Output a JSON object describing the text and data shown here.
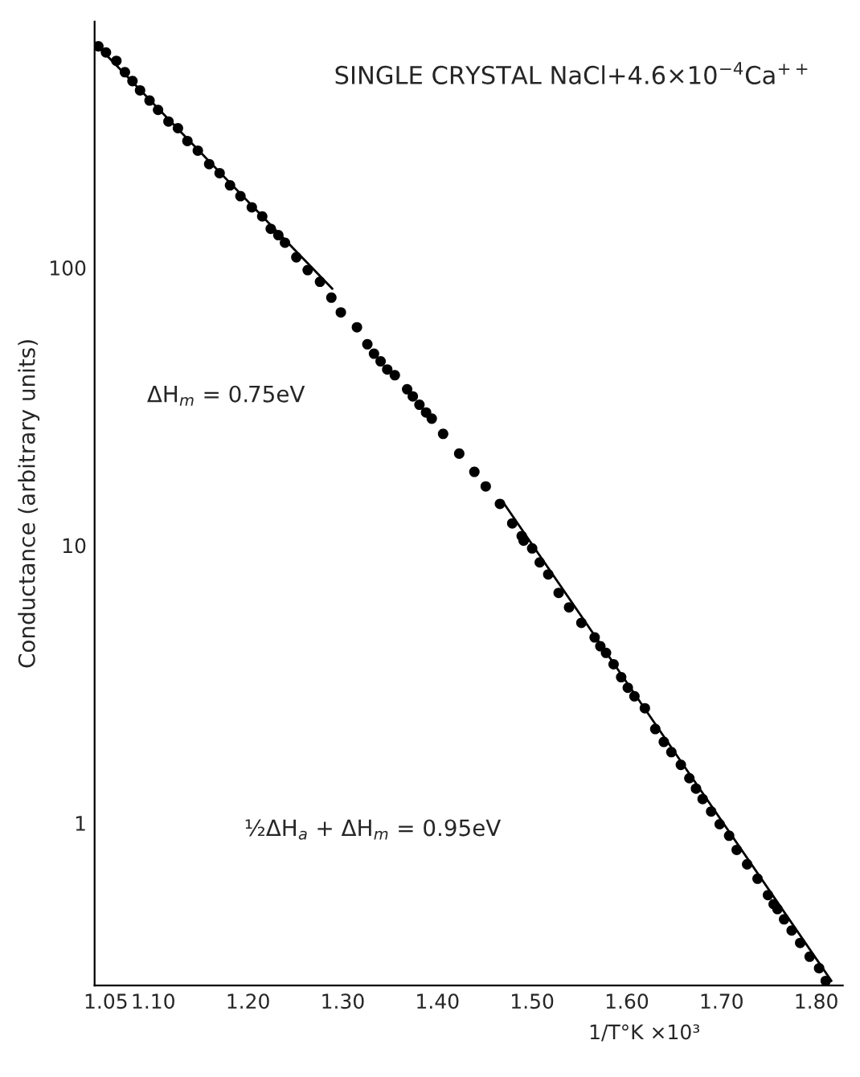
{
  "chart_data": {
    "type": "scatter",
    "title": "SINGLE CRYSTAL NaCl+4.6×10$^{−4}$Ca$^{++}$",
    "xlabel": "1/T°K ×10³",
    "ylabel": "Conductance (arbitrary units)",
    "annotations": [
      "ΔH$_{m}$ = 0.75eV",
      "½ΔH$_{a}$ + ΔH$_{m}$ = 0.95eV"
    ],
    "log": "y",
    "xlim": [
      1.038,
      1.828
    ],
    "ylim": [
      0.26,
      770
    ],
    "xticks": [
      {
        "value": 1.05,
        "label": "1.05"
      },
      {
        "value": 1.1,
        "label": "1.10"
      },
      {
        "value": 1.2,
        "label": "1.20"
      },
      {
        "value": 1.3,
        "label": "1.30"
      },
      {
        "value": 1.4,
        "label": "1.40"
      },
      {
        "value": 1.5,
        "label": "1.50"
      },
      {
        "value": 1.6,
        "label": "1.60"
      },
      {
        "value": 1.7,
        "label": "1.70"
      },
      {
        "value": 1.8,
        "label": "1.80"
      }
    ],
    "yticks": [
      1,
      10,
      100
    ],
    "grid": false,
    "legend": false,
    "series": [
      {
        "color": "#000000",
        "marker": "circle",
        "x": [
          1.042,
          1.05,
          1.061,
          1.07,
          1.078,
          1.086,
          1.096,
          1.105,
          1.116,
          1.126,
          1.136,
          1.147,
          1.159,
          1.17,
          1.181,
          1.192,
          1.204,
          1.215,
          1.224,
          1.232,
          1.239,
          1.251,
          1.263,
          1.276,
          1.288,
          1.298,
          1.315,
          1.326,
          1.333,
          1.34,
          1.347,
          1.355,
          1.368,
          1.374,
          1.381,
          1.388,
          1.394,
          1.406,
          1.423,
          1.439,
          1.451,
          1.466,
          1.479,
          1.489,
          1.491,
          1.5,
          1.508,
          1.517,
          1.528,
          1.539,
          1.552,
          1.566,
          1.572,
          1.578,
          1.586,
          1.594,
          1.601,
          1.608,
          1.619,
          1.63,
          1.639,
          1.647,
          1.657,
          1.666,
          1.673,
          1.68,
          1.689,
          1.698,
          1.708,
          1.716,
          1.727,
          1.738,
          1.749,
          1.755,
          1.759,
          1.766,
          1.774,
          1.783,
          1.793,
          1.803,
          1.81
        ],
        "values": [
          627,
          596,
          556,
          506,
          470,
          435,
          400,
          370,
          336,
          318,
          286,
          264,
          236,
          219,
          198,
          181,
          165,
          153,
          138,
          131,
          123,
          109,
          98,
          89,
          78,
          69,
          61,
          53,
          49,
          46,
          43,
          41,
          36.5,
          34.4,
          32.1,
          30.1,
          28.6,
          25.2,
          21.4,
          18.4,
          16.3,
          14.1,
          12.0,
          10.8,
          10.4,
          9.75,
          8.68,
          7.86,
          6.74,
          5.98,
          5.26,
          4.66,
          4.33,
          4.1,
          3.73,
          3.35,
          3.07,
          2.86,
          2.59,
          2.18,
          1.96,
          1.8,
          1.62,
          1.45,
          1.33,
          1.22,
          1.1,
          0.99,
          0.9,
          0.8,
          0.71,
          0.63,
          0.55,
          0.51,
          0.49,
          0.45,
          0.41,
          0.37,
          0.33,
          0.3,
          0.27
        ]
      },
      {
        "type": "line",
        "color": "#000000",
        "line_style": "solid",
        "x": [
          1.039,
          1.289
        ],
        "values": [
          640,
          84
        ]
      },
      {
        "type": "line",
        "color": "#000000",
        "line_style": "solid",
        "x": [
          1.47,
          1.816
        ],
        "values": [
          14.2,
          0.27
        ]
      }
    ]
  }
}
